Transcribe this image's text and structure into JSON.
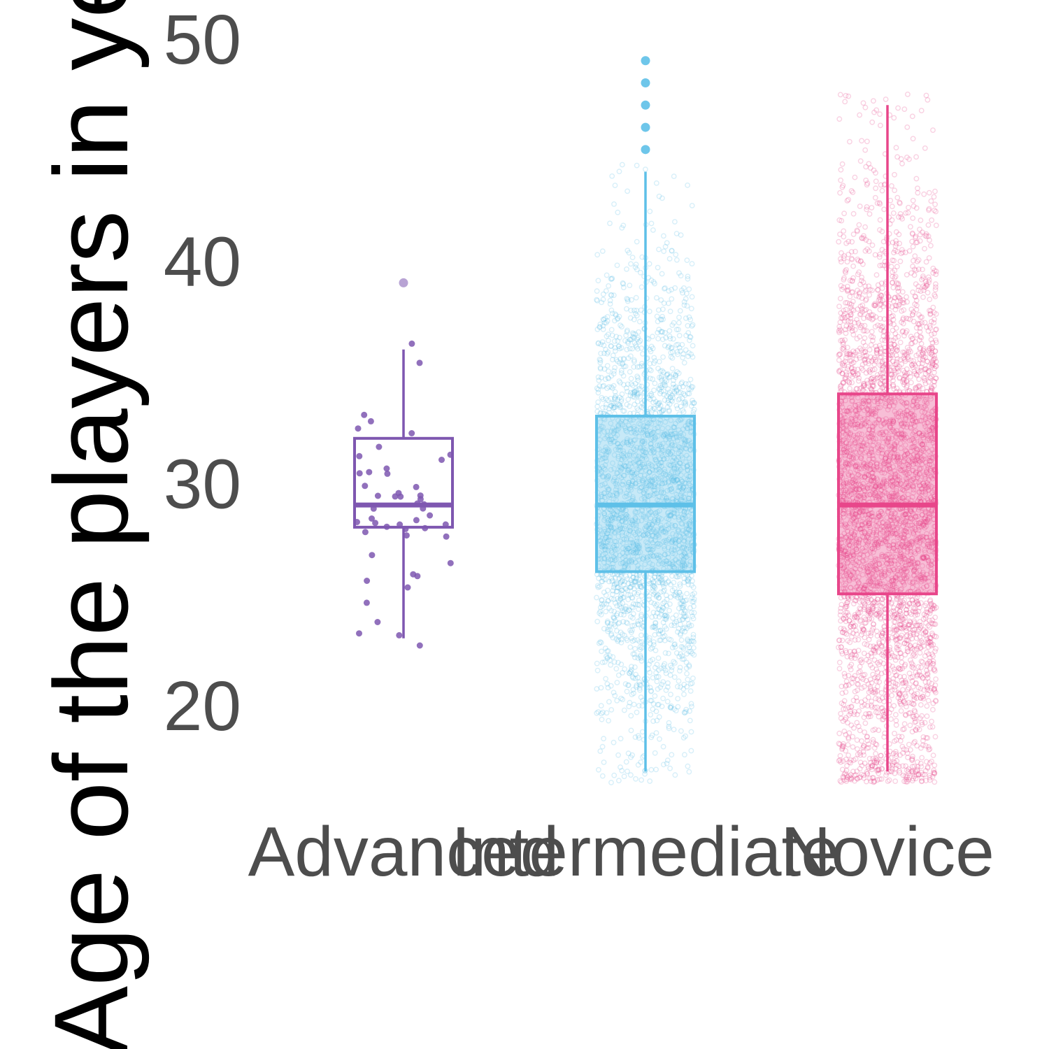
{
  "chart_data": {
    "type": "boxplot",
    "ylabel": "Age of the players in years",
    "ylim": [
      17,
      50
    ],
    "yticks": [
      20,
      30,
      40,
      50
    ],
    "grid": false,
    "legend": "none",
    "categories": [
      "Advanced",
      "Intermediate",
      "Novice"
    ],
    "series": [
      {
        "category": "Advanced",
        "color": "#7e57b0",
        "point_opacity": 0.85,
        "n_points": 50,
        "whisker_low": 23,
        "q1": 28,
        "median": 29,
        "q3": 32,
        "whisker_high": 36,
        "outliers": [
          39
        ]
      },
      {
        "category": "Intermediate",
        "color": "#5ec0e8",
        "point_opacity": 0.25,
        "n_points": 2600,
        "whisker_low": 17,
        "q1": 26,
        "median": 29,
        "q3": 33,
        "whisker_high": 44,
        "outliers": [
          45,
          46,
          47,
          48,
          49
        ]
      },
      {
        "category": "Novice",
        "color": "#e8468a",
        "point_opacity": 0.25,
        "n_points": 4000,
        "whisker_low": 17,
        "q1": 25,
        "median": 29,
        "q3": 34,
        "whisker_high": 47,
        "outliers": []
      }
    ]
  }
}
